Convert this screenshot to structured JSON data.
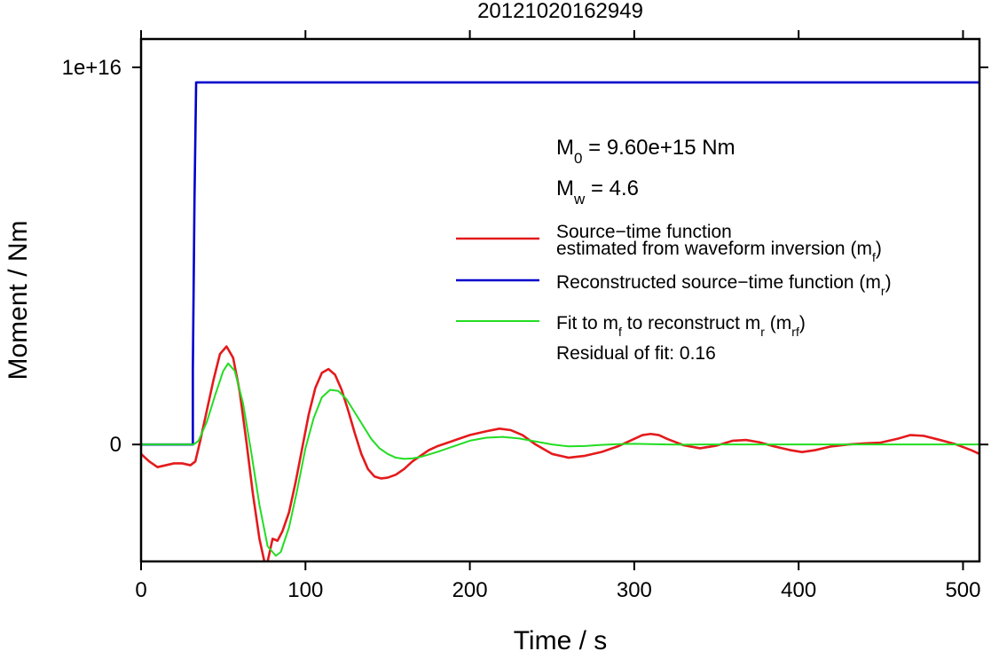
{
  "chart_data": {
    "type": "line",
    "title": "20121020162949",
    "xlabel": "Time / s",
    "ylabel": "Moment / Nm",
    "xlim": [
      0,
      510
    ],
    "ylim": [
      -3100000000000000.0,
      1.075e+16
    ],
    "x_ticks": [
      {
        "value": 0,
        "label": "0"
      },
      {
        "value": 100,
        "label": "100"
      },
      {
        "value": 200,
        "label": "200"
      },
      {
        "value": 300,
        "label": "300"
      },
      {
        "value": 400,
        "label": "400"
      },
      {
        "value": 500,
        "label": "500"
      }
    ],
    "y_ticks": [
      {
        "value": 0,
        "label": "0"
      },
      {
        "value": 1e+16,
        "label": "1e+16"
      }
    ],
    "grid": false,
    "legend_position": "right, inside plot",
    "annotations": {
      "m0": {
        "sym": "M",
        "sub": "0",
        "rest": " = 9.60e+15 Nm"
      },
      "mw": {
        "sym": "M",
        "sub": "w",
        "rest": " = 4.6"
      },
      "residual": "Residual of fit: 0.16"
    },
    "legend": [
      {
        "lines": [
          "Source−time function",
          "estimated from waveform inversion (m",
          "f",
          ")"
        ],
        "color": "#e41a1c"
      },
      {
        "lines": [
          "Reconstructed source−time function (m",
          "r",
          ")"
        ],
        "color": "#0000cc"
      },
      {
        "lines": [
          "Fit to m",
          "f",
          " to reconstruct m",
          "r",
          " (m",
          "rf",
          ")"
        ],
        "color": "#22dd22"
      }
    ],
    "series": [
      {
        "name": "Source−time function estimated from waveform inversion (mf)",
        "color": "#e41a1c",
        "x": [
          0,
          5,
          10,
          15,
          20,
          25,
          30,
          33,
          36,
          40,
          44,
          48,
          52,
          56,
          60,
          64,
          68,
          72,
          76,
          80,
          83,
          86,
          90,
          94,
          98,
          102,
          106,
          110,
          114,
          118,
          122,
          126,
          130,
          134,
          138,
          142,
          146,
          150,
          155,
          160,
          165,
          170,
          175,
          180,
          190,
          200,
          210,
          218,
          225,
          232,
          240,
          250,
          260,
          270,
          280,
          290,
          300,
          305,
          310,
          315,
          320,
          330,
          340,
          350,
          360,
          368,
          376,
          385,
          395,
          402,
          410,
          420,
          430,
          440,
          450,
          460,
          468,
          476,
          486,
          496,
          505,
          510
        ],
        "y": [
          -250000000000000.0,
          -450000000000000.0,
          -600000000000000.0,
          -550000000000000.0,
          -500000000000000.0,
          -500000000000000.0,
          -550000000000000.0,
          -450000000000000.0,
          100000000000000.0,
          900000000000000.0,
          1700000000000000.0,
          2400000000000000.0,
          2600000000000000.0,
          2300000000000000.0,
          1400000000000000.0,
          100000000000000.0,
          -1300000000000000.0,
          -2500000000000000.0,
          -3300000000000000.0,
          -2500000000000000.0,
          -2550000000000000.0,
          -2300000000000000.0,
          -1800000000000000.0,
          -1000000000000000.0,
          -100000000000000.0,
          800000000000000.0,
          1500000000000000.0,
          1900000000000000.0,
          2000000000000000.0,
          1850000000000000.0,
          1450000000000000.0,
          900000000000000.0,
          300000000000000.0,
          -250000000000000.0,
          -650000000000000.0,
          -850000000000000.0,
          -900000000000000.0,
          -880000000000000.0,
          -800000000000000.0,
          -650000000000000.0,
          -450000000000000.0,
          -300000000000000.0,
          -150000000000000.0,
          -50000000000000.0,
          100000000000000.0,
          250000000000000.0,
          350000000000000.0,
          420000000000000.0,
          380000000000000.0,
          250000000000000.0,
          0,
          -250000000000000.0,
          -350000000000000.0,
          -300000000000000.0,
          -200000000000000.0,
          -50000000000000.0,
          150000000000000.0,
          250000000000000.0,
          280000000000000.0,
          250000000000000.0,
          150000000000000.0,
          -20000000000000.0,
          -100000000000000.0,
          -30000000000000.0,
          100000000000000.0,
          120000000000000.0,
          60000000000000.0,
          -50000000000000.0,
          -150000000000000.0,
          -200000000000000.0,
          -150000000000000.0,
          -50000000000000.0,
          0,
          30000000000000.0,
          50000000000000.0,
          150000000000000.0,
          250000000000000.0,
          230000000000000.0,
          120000000000000.0,
          0,
          -150000000000000.0,
          -250000000000000.0
        ]
      },
      {
        "name": "Reconstructed source−time function (mr)",
        "color": "#0000cc",
        "x": [
          0,
          31.5,
          31.5,
          32.5,
          33.5,
          33.5,
          510
        ],
        "y": [
          0,
          0,
          2000000000000000.0,
          6500000000000000.0,
          9600000000000000.0,
          9600000000000000.0,
          9600000000000000.0
        ]
      },
      {
        "name": "Fit to mf to reconstruct mr (mrf)",
        "color": "#22dd22",
        "x": [
          0,
          32,
          35,
          40,
          45,
          50,
          53,
          57,
          62,
          67,
          72,
          77,
          82,
          85,
          90,
          95,
          100,
          105,
          110,
          115,
          120,
          125,
          130,
          135,
          140,
          145,
          150,
          155,
          160,
          165,
          170,
          180,
          190,
          200,
          210,
          220,
          230,
          240,
          250,
          260,
          270,
          280,
          290,
          300,
          310,
          320,
          330,
          340,
          360,
          380,
          400,
          450,
          510
        ],
        "y": [
          0,
          0,
          100000000000000.0,
          600000000000000.0,
          1300000000000000.0,
          1950000000000000.0,
          2150000000000000.0,
          1950000000000000.0,
          1100000000000000.0,
          -200000000000000.0,
          -1600000000000000.0,
          -2700000000000000.0,
          -2950000000000000.0,
          -2850000000000000.0,
          -2200000000000000.0,
          -1200000000000000.0,
          -100000000000000.0,
          700000000000000.0,
          1250000000000000.0,
          1450000000000000.0,
          1420000000000000.0,
          1200000000000000.0,
          850000000000000.0,
          500000000000000.0,
          150000000000000.0,
          -100000000000000.0,
          -250000000000000.0,
          -350000000000000.0,
          -380000000000000.0,
          -370000000000000.0,
          -330000000000000.0,
          -200000000000000.0,
          -50000000000000.0,
          100000000000000.0,
          180000000000000.0,
          200000000000000.0,
          160000000000000.0,
          80000000000000.0,
          0,
          -50000000000000.0,
          -40000000000000.0,
          -10000000000000.0,
          10000000000000.0,
          20000000000000.0,
          10000000000000.0,
          0,
          -5000000000000.0,
          0,
          0,
          0,
          0,
          0,
          0
        ]
      }
    ]
  }
}
